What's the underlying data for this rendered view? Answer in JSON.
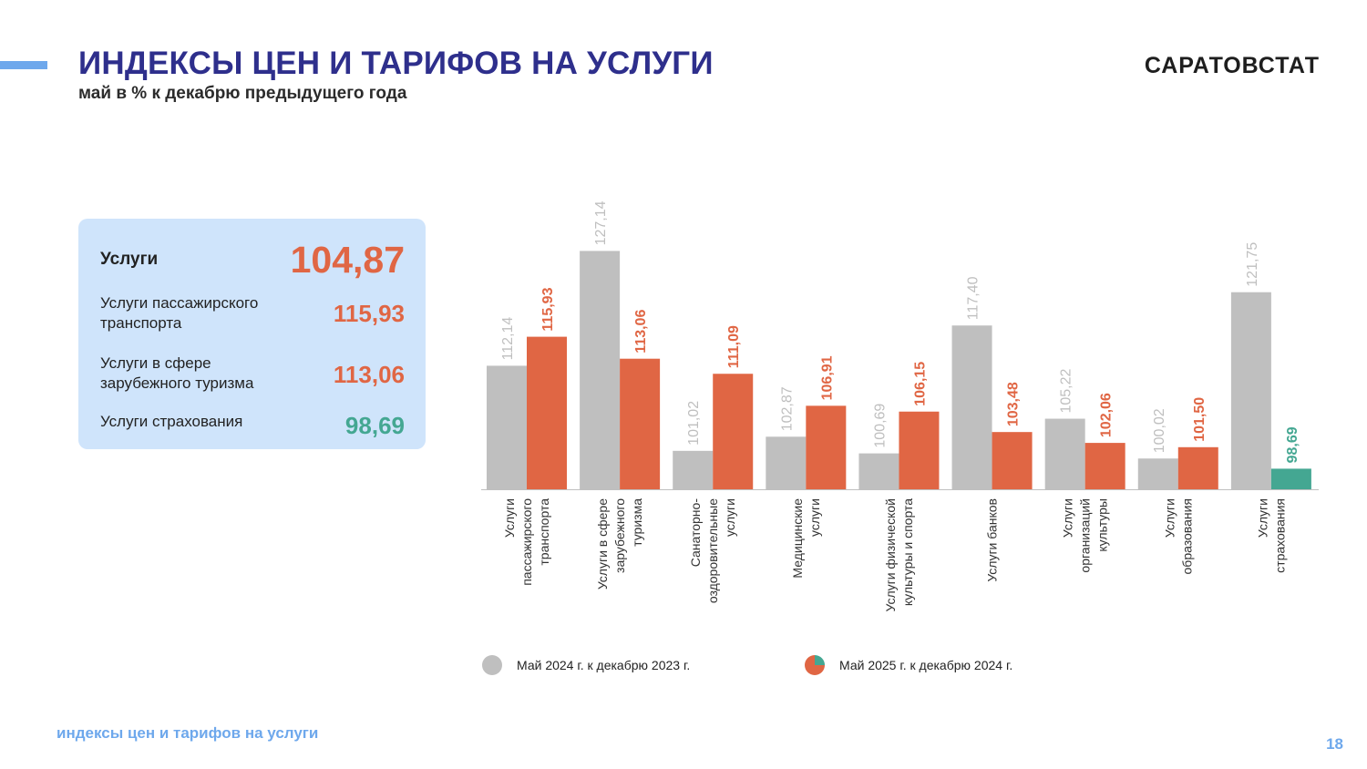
{
  "header": {
    "title": "ИНДЕКСЫ ЦЕН И ТАРИФОВ НА УСЛУГИ",
    "subtitle": "май в % к декабрю предыдущего года",
    "brand": "САРАТОВСТАТ"
  },
  "summary": {
    "main": {
      "label": "Услуги",
      "value": "104,87"
    },
    "items": [
      {
        "label": "Услуги пассажирского транспорта",
        "value": "115,93"
      },
      {
        "label": "Услуги в сфере зарубежного туризма",
        "value": "113,06"
      },
      {
        "label": "Услуги страхования",
        "value": "98,69"
      }
    ]
  },
  "colors": {
    "prev_year": "#bfbfbf",
    "current_year": "#e06644",
    "current_year_below_100": "#44a792",
    "title": "#2e2f8c",
    "accent": "#6ea8ec"
  },
  "chart_data": {
    "type": "bar",
    "categories": [
      "Услуги пассажирского транспорта",
      "Услуги в сфере зарубежного туризма",
      "Санаторно-оздоровительные услуги",
      "Медицинские услуги",
      "Услуги физической культуры и спорта",
      "Услуги банков",
      "Услуги организаций культуры",
      "Услуги образования",
      "Услуги страхования"
    ],
    "category_label_lines": [
      [
        "Услуги",
        "пассажирского",
        "транспорта"
      ],
      [
        "Услуги в сфере",
        "зарубежного",
        "туризма"
      ],
      [
        "Санаторно-",
        "оздоровительные",
        "услуги"
      ],
      [
        "Медицинские",
        "услуги"
      ],
      [
        "Услуги физической",
        "культуры и спорта"
      ],
      [
        "Услуги банков"
      ],
      [
        "Услуги",
        "организаций",
        "культуры"
      ],
      [
        "Услуги",
        "образования"
      ],
      [
        "Услуги",
        "страхования"
      ]
    ],
    "series": [
      {
        "name": "Май  2024 г. к декабрю  2023 г.",
        "values": [
          112.14,
          127.14,
          101.02,
          102.87,
          100.69,
          117.4,
          105.22,
          100.02,
          121.75
        ],
        "labels": [
          "112,14",
          "127,14",
          "101,02",
          "102,87",
          "100,69",
          "117,40",
          "105,22",
          "100,02",
          "121,75"
        ]
      },
      {
        "name": "Май  2025 г. к декабрю  2024 г.",
        "values": [
          115.93,
          113.06,
          111.09,
          106.91,
          106.15,
          103.48,
          102.06,
          101.5,
          98.69
        ],
        "labels": [
          "115,93",
          "113,06",
          "111,09",
          "106,91",
          "106,15",
          "103,48",
          "102,06",
          "101,50",
          "98,69"
        ]
      }
    ],
    "ylim": [
      96,
      132
    ],
    "grid": false,
    "legend_position": "bottom"
  },
  "footer": {
    "caption": "индексы цен и тарифов на услуги",
    "page_number": "18"
  }
}
